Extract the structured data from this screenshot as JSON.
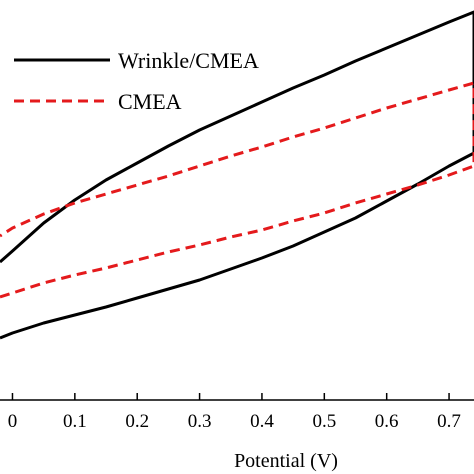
{
  "chart_data": {
    "type": "line",
    "title": "",
    "xlabel": "Potential (V)",
    "ylabel": "",
    "xlim": [
      -0.02,
      0.74
    ],
    "ylim": [
      -1.0,
      1.0
    ],
    "x_ticks": [
      0,
      0.1,
      0.2,
      0.3,
      0.4,
      0.5,
      0.6,
      0.7
    ],
    "x_tick_labels": [
      "0",
      "0.1",
      "0.2",
      "0.3",
      "0.4",
      "0.5",
      "0.6",
      "0.7"
    ],
    "legend_position": "top-left",
    "grid": false,
    "series": [
      {
        "name": "Wrinkle/CMEA",
        "color": "#000000",
        "style": "solid",
        "forward": {
          "x": [
            -0.02,
            0.0,
            0.05,
            0.1,
            0.15,
            0.2,
            0.25,
            0.3,
            0.35,
            0.4,
            0.45,
            0.5,
            0.55,
            0.6,
            0.65,
            0.7,
            0.74
          ],
          "y": [
            -0.69,
            -0.665,
            -0.615,
            -0.575,
            -0.535,
            -0.49,
            -0.445,
            -0.4,
            -0.345,
            -0.29,
            -0.23,
            -0.16,
            -0.09,
            -0.005,
            0.08,
            0.17,
            0.235
          ]
        },
        "reverse": {
          "x": [
            0.74,
            0.7,
            0.65,
            0.6,
            0.55,
            0.5,
            0.45,
            0.4,
            0.35,
            0.3,
            0.25,
            0.2,
            0.15,
            0.1,
            0.05,
            0.0,
            -0.02
          ],
          "y": [
            0.94,
            0.89,
            0.825,
            0.76,
            0.695,
            0.625,
            0.56,
            0.49,
            0.42,
            0.35,
            0.27,
            0.185,
            0.1,
            0.0,
            -0.115,
            -0.255,
            -0.31
          ]
        }
      },
      {
        "name": "CMEA",
        "color": "#e41a1c",
        "style": "dashed",
        "forward": {
          "x": [
            -0.02,
            0.0,
            0.05,
            0.1,
            0.15,
            0.2,
            0.25,
            0.3,
            0.35,
            0.4,
            0.45,
            0.5,
            0.55,
            0.6,
            0.65,
            0.7,
            0.74
          ],
          "y": [
            -0.485,
            -0.465,
            -0.415,
            -0.375,
            -0.34,
            -0.3,
            -0.26,
            -0.225,
            -0.185,
            -0.15,
            -0.105,
            -0.065,
            -0.015,
            0.03,
            0.075,
            0.125,
            0.17
          ]
        },
        "reverse": {
          "x": [
            0.74,
            0.7,
            0.65,
            0.6,
            0.55,
            0.5,
            0.45,
            0.4,
            0.35,
            0.3,
            0.25,
            0.2,
            0.15,
            0.1,
            0.05,
            0.0,
            -0.02
          ],
          "y": [
            0.585,
            0.55,
            0.505,
            0.46,
            0.41,
            0.36,
            0.315,
            0.265,
            0.22,
            0.17,
            0.12,
            0.075,
            0.03,
            -0.015,
            -0.07,
            -0.14,
            -0.18
          ]
        }
      }
    ]
  }
}
